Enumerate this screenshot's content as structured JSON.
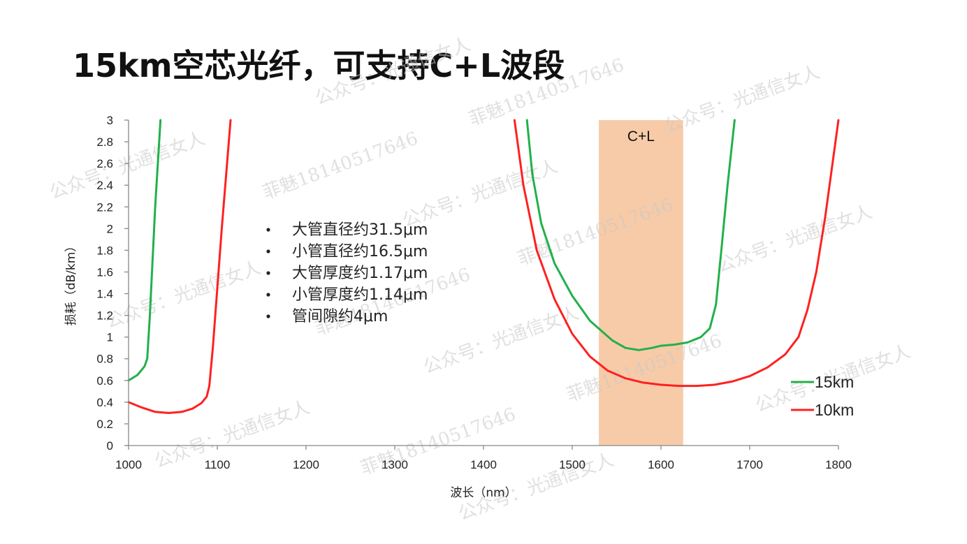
{
  "page": {
    "title": "15km空芯光纤，可支持C+L波段"
  },
  "chart_data": {
    "type": "line",
    "xlabel": "波长（nm）",
    "ylabel": "损耗（dB/km）",
    "xlim": [
      1000,
      1800
    ],
    "ylim": [
      0,
      3
    ],
    "xticks": [
      1000,
      1100,
      1200,
      1300,
      1400,
      1500,
      1600,
      1700,
      1800
    ],
    "yticks": [
      0,
      0.2,
      0.4,
      0.6,
      0.8,
      1,
      1.2,
      1.4,
      1.6,
      1.8,
      2,
      2.2,
      2.4,
      2.6,
      2.8,
      3
    ],
    "grid": false,
    "legend_position": "bottom-right",
    "band": {
      "label": "C+L",
      "x_range": [
        1530,
        1625
      ],
      "color": "#f7cba8"
    },
    "notes": [
      "大管直径约31.5μm",
      "小管直径约16.5μm",
      "大管厚度约1.17μm",
      "小管厚度约1.14μm",
      "管间隙约4μm"
    ],
    "series": [
      {
        "name": "15km",
        "color": "#22b04b",
        "segments": [
          {
            "x": [
              1000,
              1010,
              1018,
              1021,
              1024,
              1027,
              1030,
              1033,
              1036
            ],
            "y": [
              0.6,
              0.65,
              0.73,
              0.8,
              1.2,
              1.7,
              2.2,
              2.6,
              3.0
            ]
          },
          {
            "x": [
              1449,
              1455,
              1465,
              1480,
              1500,
              1520,
              1545,
              1560,
              1575,
              1590,
              1600,
              1615,
              1630,
              1645,
              1655,
              1662,
              1668,
              1675,
              1683
            ],
            "y": [
              3.0,
              2.5,
              2.05,
              1.68,
              1.38,
              1.15,
              0.97,
              0.9,
              0.88,
              0.9,
              0.92,
              0.93,
              0.95,
              1.0,
              1.08,
              1.3,
              1.8,
              2.4,
              3.0
            ]
          }
        ]
      },
      {
        "name": "10km",
        "color": "#ff2020",
        "segments": [
          {
            "x": [
              1000,
              1015,
              1030,
              1045,
              1060,
              1072,
              1082,
              1088,
              1091,
              1095,
              1100,
              1105,
              1110,
              1115
            ],
            "y": [
              0.4,
              0.35,
              0.31,
              0.3,
              0.31,
              0.34,
              0.39,
              0.45,
              0.55,
              0.9,
              1.45,
              2.0,
              2.5,
              3.0
            ]
          },
          {
            "x": [
              1435,
              1445,
              1460,
              1480,
              1500,
              1520,
              1540,
              1560,
              1580,
              1600,
              1620,
              1640,
              1660,
              1680,
              1700,
              1720,
              1740,
              1755,
              1765,
              1775,
              1785,
              1800
            ],
            "y": [
              3.0,
              2.4,
              1.8,
              1.35,
              1.03,
              0.82,
              0.69,
              0.62,
              0.58,
              0.56,
              0.55,
              0.55,
              0.56,
              0.59,
              0.64,
              0.72,
              0.84,
              1.0,
              1.25,
              1.6,
              2.1,
              3.0
            ]
          }
        ]
      }
    ],
    "watermarks": [
      "公众号：光通信女人",
      "菲魅18140517646"
    ]
  }
}
